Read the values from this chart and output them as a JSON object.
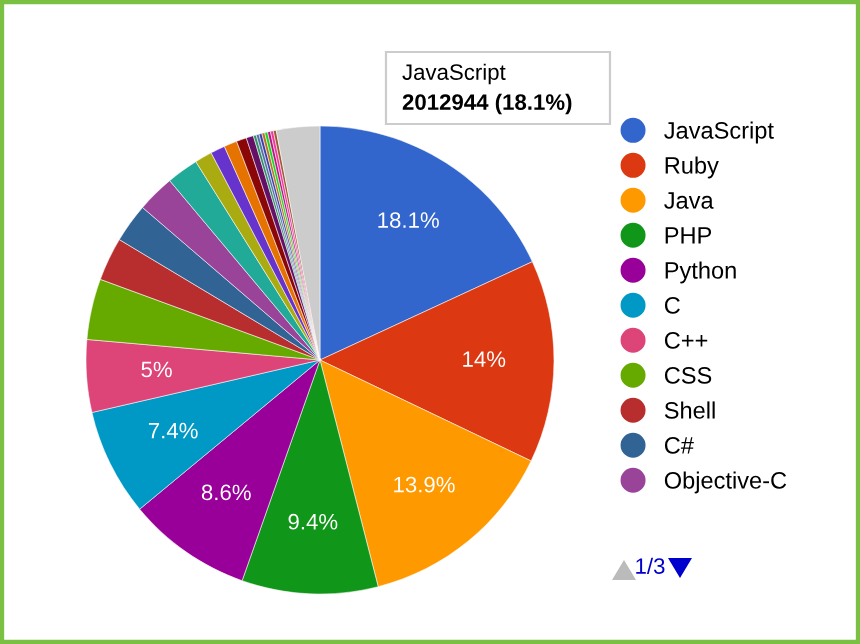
{
  "chart_data": {
    "type": "pie",
    "categories": [
      "JavaScript",
      "Ruby",
      "Java",
      "PHP",
      "Python",
      "C",
      "C++",
      "CSS",
      "Shell",
      "C#",
      "Objective-C",
      null,
      null,
      null,
      null,
      null,
      null,
      null,
      null,
      null,
      null,
      null,
      null,
      null,
      null,
      null
    ],
    "values": [
      18.1,
      14,
      13.9,
      9.4,
      8.6,
      7.4,
      5,
      4.2,
      3.0,
      2.7,
      2.6,
      2.2,
      1.2,
      1.0,
      0.9,
      0.7,
      0.5,
      0.2,
      0.2,
      0.2,
      0.2,
      0.2,
      0.2,
      0.2,
      0.2,
      3.0
    ],
    "colors": [
      "#3366cc",
      "#dc3912",
      "#ff9900",
      "#109618",
      "#990099",
      "#0099c6",
      "#dd4477",
      "#66aa00",
      "#b82e2e",
      "#316395",
      "#994499",
      "#22aa99",
      "#aaaa11",
      "#6633cc",
      "#e67300",
      "#8b0707",
      "#651067",
      "#329262",
      "#5574a6",
      "#3b3eac",
      "#b77322",
      "#16d620",
      "#b91383",
      "#f4359e",
      "#9c5935",
      "#cccccc"
    ],
    "value_labels": [
      "18.1%",
      "14%",
      "13.9%",
      "9.4%",
      "8.6%",
      "7.4%",
      "5%",
      null,
      null,
      null,
      null,
      null,
      null,
      null,
      null,
      null,
      null,
      null,
      null,
      null,
      null,
      null,
      null,
      null,
      null,
      null
    ],
    "legend": "right",
    "annotations": [
      "JavaScript",
      "2012944 (18.1%)",
      "1/3"
    ]
  }
}
